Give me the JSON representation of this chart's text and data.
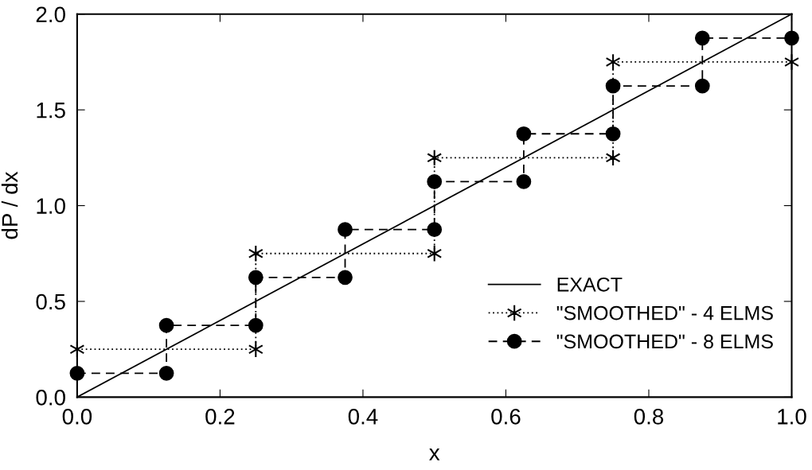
{
  "chart_data": {
    "type": "line",
    "xlabel": "x",
    "ylabel": "dP / dx",
    "xlim": [
      0,
      1
    ],
    "ylim": [
      0,
      2
    ],
    "xticks": [
      {
        "value": 0,
        "label": "0.0"
      },
      {
        "value": 0.2,
        "label": "0.2"
      },
      {
        "value": 0.4,
        "label": "0.4"
      },
      {
        "value": 0.6,
        "label": "0.6"
      },
      {
        "value": 0.8,
        "label": "0.8"
      },
      {
        "value": 1,
        "label": "1.0"
      }
    ],
    "yticks": [
      {
        "value": 0,
        "label": "0.0"
      },
      {
        "value": 0.5,
        "label": "0.5"
      },
      {
        "value": 1,
        "label": "1.0"
      },
      {
        "value": 1.5,
        "label": "1.5"
      },
      {
        "value": 2,
        "label": "2.0"
      }
    ],
    "grid": false,
    "legend": "bottom right",
    "series": [
      {
        "name": "EXACT",
        "color": "#000000",
        "x": [
          0,
          1
        ],
        "values": [
          0,
          2
        ],
        "marker": "none",
        "line_style": "solid"
      },
      {
        "name": "\"SMOOTHED\" - 4 ELMS",
        "color": "#000000",
        "x": [
          0,
          0.25,
          0.25,
          0.5,
          0.5,
          0.75,
          0.75,
          1
        ],
        "values": [
          0.25,
          0.25,
          0.75,
          0.75,
          1.25,
          1.25,
          1.75,
          1.75
        ],
        "marker": "cross",
        "line_style": "dotted"
      },
      {
        "name": "\"SMOOTHED\" - 8 ELMS",
        "color": "#000000",
        "x": [
          0,
          0.125,
          0.125,
          0.25,
          0.25,
          0.375,
          0.375,
          0.5,
          0.5,
          0.625,
          0.625,
          0.75,
          0.75,
          0.875,
          0.875,
          1
        ],
        "values": [
          0.125,
          0.125,
          0.375,
          0.375,
          0.625,
          0.625,
          0.875,
          0.875,
          1.125,
          1.125,
          1.375,
          1.375,
          1.625,
          1.625,
          1.875,
          1.875
        ],
        "marker": "circle",
        "line_style": "dashed"
      }
    ]
  }
}
